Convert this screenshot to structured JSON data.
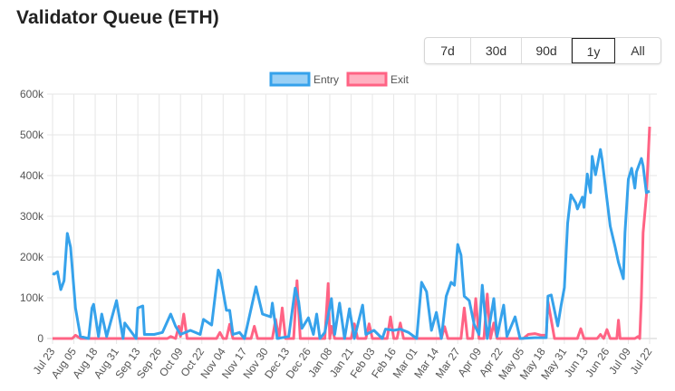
{
  "header": {
    "title": "Validator Queue (ETH)"
  },
  "range_buttons": [
    {
      "label": "7d",
      "active": false
    },
    {
      "label": "30d",
      "active": false
    },
    {
      "label": "90d",
      "active": false
    },
    {
      "label": "1y",
      "active": true
    },
    {
      "label": "All",
      "active": false
    }
  ],
  "chart_data": {
    "type": "line",
    "title": "",
    "xlabel": "",
    "ylabel": "",
    "ylim": [
      0,
      600000
    ],
    "y_ticks": [
      "0",
      "100k",
      "200k",
      "300k",
      "400k",
      "500k",
      "600k"
    ],
    "x_ticks": [
      "Jul 23",
      "Aug 05",
      "Aug 18",
      "Aug 31",
      "Sep 13",
      "Sep 26",
      "Oct 09",
      "Oct 22",
      "Nov 04",
      "Nov 17",
      "Nov 30",
      "Dec 13",
      "Dec 26",
      "Jan 08",
      "Jan 21",
      "Feb 03",
      "Feb 16",
      "Mar 01",
      "Mar 14",
      "Mar 27",
      "Apr 09",
      "Apr 22",
      "May 05",
      "May 18",
      "May 31",
      "Jun 13",
      "Jun 26",
      "Jul 09",
      "Jul 22"
    ],
    "grid": true,
    "legend": "top",
    "series": [
      {
        "name": "Entry",
        "color": "#36a2eb",
        "points": [
          [
            "Jul 23",
            160000
          ],
          [
            "Jul 24",
            158000
          ],
          [
            "Jul 26",
            164000
          ],
          [
            "Jul 28",
            120000
          ],
          [
            "Jul 30",
            142000
          ],
          [
            "Aug 01",
            258000
          ],
          [
            "Aug 03",
            224000
          ],
          [
            "Aug 06",
            75000
          ],
          [
            "Aug 09",
            5000
          ],
          [
            "Aug 14",
            0
          ],
          [
            "Aug 16",
            75000
          ],
          [
            "Aug 17",
            84000
          ],
          [
            "Aug 20",
            5000
          ],
          [
            "Aug 22",
            60000
          ],
          [
            "Aug 25",
            5000
          ],
          [
            "Aug 31",
            93000
          ],
          [
            "Sep 04",
            0
          ],
          [
            "Sep 05",
            38000
          ],
          [
            "Sep 12",
            0
          ],
          [
            "Sep 13",
            75000
          ],
          [
            "Sep 16",
            80000
          ],
          [
            "Sep 17",
            10000
          ],
          [
            "Sep 23",
            10000
          ],
          [
            "Sep 28",
            15000
          ],
          [
            "Oct 03",
            60000
          ],
          [
            "Oct 06",
            30000
          ],
          [
            "Oct 09",
            10000
          ],
          [
            "Oct 15",
            20000
          ],
          [
            "Oct 21",
            10000
          ],
          [
            "Oct 23",
            47000
          ],
          [
            "Oct 28",
            33000
          ],
          [
            "Nov 01",
            168000
          ],
          [
            "Nov 02",
            160000
          ],
          [
            "Nov 06",
            69000
          ],
          [
            "Nov 08",
            69000
          ],
          [
            "Nov 10",
            10000
          ],
          [
            "Nov 14",
            15000
          ],
          [
            "Nov 17",
            0
          ],
          [
            "Nov 24",
            127000
          ],
          [
            "Nov 28",
            60000
          ],
          [
            "Dec 03",
            53000
          ],
          [
            "Dec 04",
            87000
          ],
          [
            "Dec 07",
            0
          ],
          [
            "Dec 14",
            5000
          ],
          [
            "Dec 18",
            124000
          ],
          [
            "Dec 20",
            91000
          ],
          [
            "Dec 22",
            25000
          ],
          [
            "Dec 26",
            51000
          ],
          [
            "Dec 29",
            10000
          ],
          [
            "Dec 31",
            60000
          ],
          [
            "Jan 02",
            0
          ],
          [
            "Jan 05",
            15000
          ],
          [
            "Jan 09",
            98000
          ],
          [
            "Jan 11",
            10000
          ],
          [
            "Jan 14",
            87000
          ],
          [
            "Jan 17",
            0
          ],
          [
            "Jan 20",
            73000
          ],
          [
            "Jan 23",
            0
          ],
          [
            "Jan 28",
            82000
          ],
          [
            "Jan 30",
            10000
          ],
          [
            "Feb 04",
            20000
          ],
          [
            "Feb 09",
            0
          ],
          [
            "Feb 11",
            23000
          ],
          [
            "Feb 16",
            20000
          ],
          [
            "Feb 20",
            23000
          ],
          [
            "Feb 25",
            15000
          ],
          [
            "Mar 02",
            0
          ],
          [
            "Mar 05",
            138000
          ],
          [
            "Mar 08",
            115000
          ],
          [
            "Mar 11",
            20000
          ],
          [
            "Mar 14",
            64000
          ],
          [
            "Mar 17",
            0
          ],
          [
            "Mar 20",
            104000
          ],
          [
            "Mar 23",
            138000
          ],
          [
            "Mar 25",
            131000
          ],
          [
            "Mar 27",
            231000
          ],
          [
            "Mar 29",
            205000
          ],
          [
            "Mar 31",
            104000
          ],
          [
            "Apr 03",
            93000
          ],
          [
            "Apr 06",
            35000
          ],
          [
            "Apr 09",
            10000
          ],
          [
            "Apr 11",
            131000
          ],
          [
            "Apr 14",
            0
          ],
          [
            "Apr 18",
            98000
          ],
          [
            "Apr 20",
            5000
          ],
          [
            "Apr 24",
            82000
          ],
          [
            "Apr 26",
            5000
          ],
          [
            "May 01",
            53000
          ],
          [
            "May 04",
            0
          ],
          [
            "May 13",
            2000
          ],
          [
            "May 20",
            2000
          ],
          [
            "May 21",
            104000
          ],
          [
            "May 23",
            107000
          ],
          [
            "May 27",
            31000
          ],
          [
            "May 29",
            80000
          ],
          [
            "May 31",
            125000
          ],
          [
            "Jun 02",
            283000
          ],
          [
            "Jun 04",
            353000
          ],
          [
            "Jun 07",
            333000
          ],
          [
            "Jun 08",
            318000
          ],
          [
            "Jun 11",
            347000
          ],
          [
            "Jun 12",
            322000
          ],
          [
            "Jun 14",
            404000
          ],
          [
            "Jun 16",
            358000
          ],
          [
            "Jun 17",
            447000
          ],
          [
            "Jun 19",
            402000
          ],
          [
            "Jun 22",
            464000
          ],
          [
            "Jun 23",
            440000
          ],
          [
            "Jun 28",
            276000
          ],
          [
            "Jul 01",
            224000
          ],
          [
            "Jul 03",
            187000
          ],
          [
            "Jul 06",
            147000
          ],
          [
            "Jul 07",
            260000
          ],
          [
            "Jul 09",
            391000
          ],
          [
            "Jul 11",
            418000
          ],
          [
            "Jul 13",
            369000
          ],
          [
            "Jul 14",
            409000
          ],
          [
            "Jul 17",
            442000
          ],
          [
            "Jul 18",
            424000
          ],
          [
            "Jul 20",
            358000
          ],
          [
            "Jul 22",
            362000
          ]
        ]
      },
      {
        "name": "Exit",
        "color": "#ff6384",
        "points": [
          [
            "Jul 23",
            0
          ],
          [
            "Aug 04",
            0
          ],
          [
            "Aug 06",
            8000
          ],
          [
            "Aug 09",
            0
          ],
          [
            "Oct 01",
            0
          ],
          [
            "Oct 03",
            5000
          ],
          [
            "Oct 06",
            0
          ],
          [
            "Oct 08",
            30000
          ],
          [
            "Oct 09",
            5000
          ],
          [
            "Oct 11",
            60000
          ],
          [
            "Oct 13",
            0
          ],
          [
            "Oct 31",
            0
          ],
          [
            "Nov 02",
            15000
          ],
          [
            "Nov 04",
            0
          ],
          [
            "Nov 06",
            0
          ],
          [
            "Nov 08",
            35000
          ],
          [
            "Nov 10",
            0
          ],
          [
            "Nov 21",
            0
          ],
          [
            "Nov 23",
            30000
          ],
          [
            "Nov 25",
            0
          ],
          [
            "Dec 04",
            0
          ],
          [
            "Dec 06",
            47000
          ],
          [
            "Dec 08",
            0
          ],
          [
            "Dec 10",
            75000
          ],
          [
            "Dec 12",
            0
          ],
          [
            "Dec 17",
            0
          ],
          [
            "Dec 19",
            142000
          ],
          [
            "Dec 21",
            0
          ],
          [
            "Jan 05",
            0
          ],
          [
            "Jan 07",
            135000
          ],
          [
            "Jan 08",
            0
          ],
          [
            "Jan 09",
            30000
          ],
          [
            "Jan 11",
            0
          ],
          [
            "Jan 21",
            0
          ],
          [
            "Jan 23",
            36000
          ],
          [
            "Jan 25",
            0
          ],
          [
            "Jan 30",
            0
          ],
          [
            "Feb 01",
            36000
          ],
          [
            "Feb 03",
            0
          ],
          [
            "Feb 12",
            0
          ],
          [
            "Feb 14",
            53000
          ],
          [
            "Feb 16",
            0
          ],
          [
            "Feb 18",
            0
          ],
          [
            "Feb 20",
            38000
          ],
          [
            "Feb 22",
            0
          ],
          [
            "Mar 17",
            0
          ],
          [
            "Mar 19",
            29000
          ],
          [
            "Mar 21",
            0
          ],
          [
            "Mar 29",
            0
          ],
          [
            "Mar 31",
            75000
          ],
          [
            "Apr 02",
            0
          ],
          [
            "Apr 05",
            0
          ],
          [
            "Apr 07",
            98000
          ],
          [
            "Apr 09",
            0
          ],
          [
            "Apr 12",
            0
          ],
          [
            "Apr 14",
            109000
          ],
          [
            "Apr 16",
            0
          ],
          [
            "Apr 18",
            38000
          ],
          [
            "Apr 20",
            0
          ],
          [
            "May 06",
            0
          ],
          [
            "May 09",
            10000
          ],
          [
            "May 13",
            12000
          ],
          [
            "May 17",
            8000
          ],
          [
            "May 20",
            8000
          ],
          [
            "May 21",
            91000
          ],
          [
            "May 25",
            0
          ],
          [
            "Jun 08",
            0
          ],
          [
            "Jun 10",
            24000
          ],
          [
            "Jun 12",
            0
          ],
          [
            "Jun 20",
            0
          ],
          [
            "Jun 22",
            10000
          ],
          [
            "Jun 24",
            0
          ],
          [
            "Jun 26",
            22000
          ],
          [
            "Jun 28",
            0
          ],
          [
            "Jul 02",
            0
          ],
          [
            "Jul 03",
            45000
          ],
          [
            "Jul 04",
            0
          ],
          [
            "Jul 13",
            0
          ],
          [
            "Jul 15",
            5000
          ],
          [
            "Jul 16",
            0
          ],
          [
            "Jul 17",
            100000
          ],
          [
            "Jul 18",
            260000
          ],
          [
            "Jul 20",
            350000
          ],
          [
            "Jul 22",
            520000
          ]
        ]
      }
    ]
  }
}
